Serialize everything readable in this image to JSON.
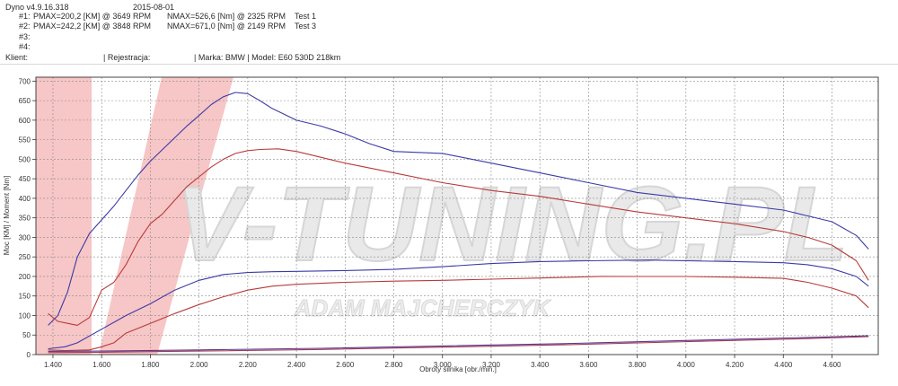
{
  "header": {
    "software": "Dyno v4.9.16.318",
    "date": "2015-08-01",
    "runs": [
      {
        "label": "#1:",
        "pmax": "PMAX=200,2 [KM] @ 3649 RPM",
        "nmax": "NMAX=526,6 [Nm] @ 2325 RPM",
        "test": "Test 1"
      },
      {
        "label": "#2:",
        "pmax": "PMAX=242,2 [KM] @ 3848 RPM",
        "nmax": "NMAX=671,0 [Nm] @ 2149 RPM",
        "test": "Test 3"
      },
      {
        "label": "#3:",
        "pmax": "",
        "nmax": "",
        "test": ""
      },
      {
        "label": "#4:",
        "pmax": "",
        "nmax": "",
        "test": ""
      }
    ],
    "client_label": "Klient:",
    "registration_label": "| Rejestracja:",
    "vehicle": "| Marka: BMW | Model: E60 530D 218km"
  },
  "watermark": {
    "brand": "V-TUNING.PL",
    "name": "ADAM MAJCHERCZYK",
    "color": "#f2a0a0"
  },
  "chart_data": {
    "type": "line",
    "xlabel": "Obroty silnika [obr./min.]",
    "ylabel": "Moc [KM] / Moment [Nm]",
    "xlim": [
      1330,
      4790
    ],
    "ylim": [
      0,
      710
    ],
    "x_ticks": [
      1400,
      1600,
      1800,
      2000,
      2200,
      2400,
      2600,
      2800,
      3000,
      3200,
      3400,
      3600,
      3800,
      4000,
      4200,
      4400,
      4600
    ],
    "x_tick_labels": [
      "1.400",
      "1.600",
      "1.800",
      "2.000",
      "2.200",
      "2.400",
      "2.600",
      "2.800",
      "3.000",
      "3.200",
      "3.400",
      "3.600",
      "3.800",
      "4.000",
      "4.200",
      "4.400",
      "4.600"
    ],
    "y_ticks": [
      0,
      50,
      100,
      150,
      200,
      250,
      300,
      350,
      400,
      450,
      500,
      550,
      600,
      650,
      700
    ],
    "grid": true,
    "series": [
      {
        "name": "#2 Moment",
        "color": "#3a3aa8",
        "x": [
          1380,
          1420,
          1460,
          1500,
          1550,
          1600,
          1650,
          1700,
          1750,
          1800,
          1850,
          1900,
          1950,
          2000,
          2050,
          2100,
          2149,
          2200,
          2250,
          2300,
          2400,
          2500,
          2600,
          2700,
          2800,
          3000,
          3200,
          3400,
          3600,
          3800,
          4000,
          4200,
          4400,
          4500,
          4600,
          4700,
          4750
        ],
        "y": [
          75,
          100,
          160,
          250,
          310,
          345,
          380,
          420,
          460,
          495,
          525,
          555,
          585,
          612,
          640,
          660,
          671,
          668,
          650,
          630,
          600,
          585,
          565,
          540,
          520,
          515,
          490,
          465,
          440,
          415,
          400,
          385,
          370,
          355,
          340,
          305,
          270
        ]
      },
      {
        "name": "#1 Moment",
        "color": "#b83a3a",
        "x": [
          1380,
          1420,
          1460,
          1500,
          1550,
          1600,
          1650,
          1700,
          1750,
          1800,
          1850,
          1900,
          1950,
          2000,
          2050,
          2100,
          2150,
          2200,
          2250,
          2325,
          2400,
          2500,
          2600,
          2800,
          3000,
          3200,
          3400,
          3600,
          3800,
          4000,
          4200,
          4400,
          4500,
          4600,
          4700,
          4750
        ],
        "y": [
          105,
          85,
          80,
          75,
          95,
          165,
          185,
          230,
          290,
          335,
          360,
          395,
          430,
          455,
          480,
          500,
          515,
          522,
          525,
          526.6,
          520,
          505,
          490,
          465,
          440,
          420,
          405,
          385,
          365,
          350,
          335,
          315,
          300,
          280,
          240,
          190
        ]
      },
      {
        "name": "#2 Moc",
        "color": "#3a3aa8",
        "x": [
          1380,
          1450,
          1500,
          1600,
          1700,
          1800,
          1900,
          2000,
          2100,
          2200,
          2300,
          2400,
          2600,
          2800,
          3000,
          3200,
          3400,
          3600,
          3848,
          4000,
          4200,
          4400,
          4500,
          4600,
          4700,
          4750
        ],
        "y": [
          15,
          20,
          30,
          65,
          100,
          130,
          165,
          190,
          205,
          210,
          212,
          213,
          215,
          218,
          225,
          233,
          238,
          240,
          242,
          240,
          238,
          235,
          230,
          220,
          200,
          175
        ]
      },
      {
        "name": "#1 Moc",
        "color": "#b83a3a",
        "x": [
          1380,
          1450,
          1550,
          1600,
          1650,
          1700,
          1800,
          1900,
          2000,
          2100,
          2200,
          2300,
          2400,
          2600,
          2800,
          3000,
          3200,
          3400,
          3649,
          3800,
          4000,
          4200,
          4400,
          4500,
          4600,
          4700,
          4750
        ],
        "y": [
          12,
          10,
          12,
          20,
          30,
          55,
          80,
          105,
          128,
          148,
          165,
          175,
          180,
          185,
          188,
          190,
          193,
          196,
          200.2,
          200,
          200,
          198,
          195,
          185,
          170,
          150,
          120
        ]
      },
      {
        "name": "Straty #2",
        "color": "#5a3a8a",
        "x": [
          1380,
          1600,
          2000,
          2500,
          3000,
          3500,
          4000,
          4500,
          4750
        ],
        "y": [
          8,
          9,
          12,
          16,
          22,
          28,
          36,
          44,
          48
        ]
      },
      {
        "name": "Straty #1",
        "color": "#a03a5a",
        "x": [
          1380,
          1600,
          2000,
          2500,
          3000,
          3500,
          4000,
          4500,
          4750
        ],
        "y": [
          5,
          6,
          9,
          13,
          19,
          25,
          33,
          41,
          46
        ]
      }
    ]
  }
}
